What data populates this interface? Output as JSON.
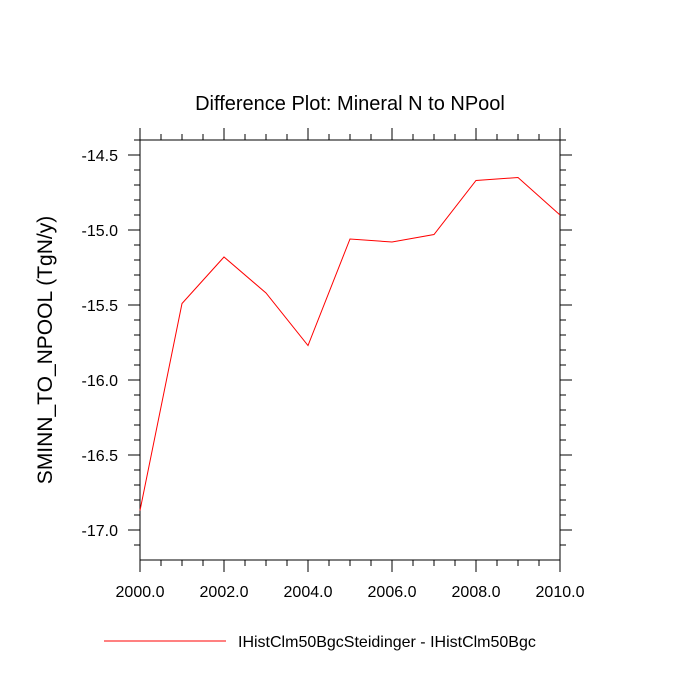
{
  "chart_data": {
    "type": "line",
    "title": "Difference Plot: Mineral N to NPool",
    "xlabel": "",
    "ylabel": "SMINN_TO_NPOOL  (TgN/y)",
    "xlim": [
      2000.0,
      2010.0
    ],
    "ylim": [
      -17.2,
      -14.4
    ],
    "xticks": [
      2000.0,
      2002.0,
      2004.0,
      2006.0,
      2008.0,
      2010.0
    ],
    "xtick_labels": [
      "2000.0",
      "2002.0",
      "2004.0",
      "2006.0",
      "2008.0",
      "2010.0"
    ],
    "yticks": [
      -14.5,
      -15.0,
      -15.5,
      -16.0,
      -16.5,
      -17.0
    ],
    "ytick_labels": [
      "-14.5",
      "-15.0",
      "-15.5",
      "-16.0",
      "-16.5",
      "-17.0"
    ],
    "grid": false,
    "legend_position": "bottom",
    "series": [
      {
        "name": "IHistClm50BgcSteidinger - IHistClm50Bgc",
        "color": "#ff0000",
        "x": [
          2000,
          2001,
          2002,
          2003,
          2004,
          2005,
          2006,
          2007,
          2008,
          2009,
          2010
        ],
        "y": [
          -16.87,
          -15.49,
          -15.18,
          -15.42,
          -15.77,
          -15.06,
          -15.08,
          -15.03,
          -14.67,
          -14.65,
          -14.9
        ]
      }
    ]
  }
}
